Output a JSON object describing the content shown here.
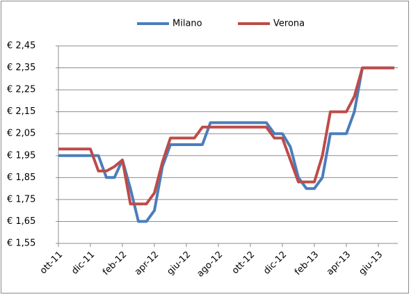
{
  "chart_data": {
    "type": "line",
    "categories": [
      "ott-11",
      null,
      null,
      null,
      "dic-11",
      null,
      null,
      null,
      "feb-12",
      null,
      null,
      null,
      "apr-12",
      null,
      null,
      null,
      "giu-12",
      null,
      null,
      null,
      "ago-12",
      null,
      null,
      null,
      "ott-12",
      null,
      null,
      null,
      "dic-12",
      null,
      null,
      null,
      "feb-13",
      null,
      null,
      null,
      "apr-13",
      null,
      null,
      null,
      "giu-13",
      null,
      null
    ],
    "series": [
      {
        "name": "Milano",
        "color": "#4a7ebb",
        "values": [
          1.95,
          1.95,
          1.95,
          1.95,
          1.95,
          1.95,
          1.85,
          1.85,
          1.93,
          1.8,
          1.65,
          1.65,
          1.7,
          1.9,
          2.0,
          2.0,
          2.0,
          2.0,
          2.0,
          2.1,
          2.1,
          2.1,
          2.1,
          2.1,
          2.1,
          2.1,
          2.1,
          2.05,
          2.05,
          1.99,
          1.85,
          1.8,
          1.8,
          1.85,
          2.05,
          2.05,
          2.05,
          2.15,
          2.35,
          2.35,
          2.35,
          2.35,
          2.35
        ]
      },
      {
        "name": "Verona",
        "color": "#be4b48",
        "values": [
          1.98,
          1.98,
          1.98,
          1.98,
          1.98,
          1.88,
          1.88,
          1.9,
          1.93,
          1.73,
          1.73,
          1.73,
          1.78,
          1.92,
          2.03,
          2.03,
          2.03,
          2.03,
          2.08,
          2.08,
          2.08,
          2.08,
          2.08,
          2.08,
          2.08,
          2.08,
          2.08,
          2.03,
          2.03,
          1.93,
          1.83,
          1.83,
          1.83,
          1.95,
          2.15,
          2.15,
          2.15,
          2.22,
          2.35,
          2.35,
          2.35,
          2.35,
          2.35
        ]
      }
    ],
    "ylim": [
      1.55,
      2.45
    ],
    "yticks": [
      {
        "value": 1.55,
        "label": "€ 1,55"
      },
      {
        "value": 1.65,
        "label": "€ 1,65"
      },
      {
        "value": 1.75,
        "label": "€ 1,75"
      },
      {
        "value": 1.85,
        "label": "€ 1,85"
      },
      {
        "value": 1.95,
        "label": "€ 1,95"
      },
      {
        "value": 2.05,
        "label": "€ 2,05"
      },
      {
        "value": 2.15,
        "label": "€ 2,15"
      },
      {
        "value": 2.25,
        "label": "€ 2,25"
      },
      {
        "value": 2.35,
        "label": "€ 2,35"
      },
      {
        "value": 2.45,
        "label": "€ 2,45"
      }
    ],
    "grid": true,
    "legend": "top"
  }
}
